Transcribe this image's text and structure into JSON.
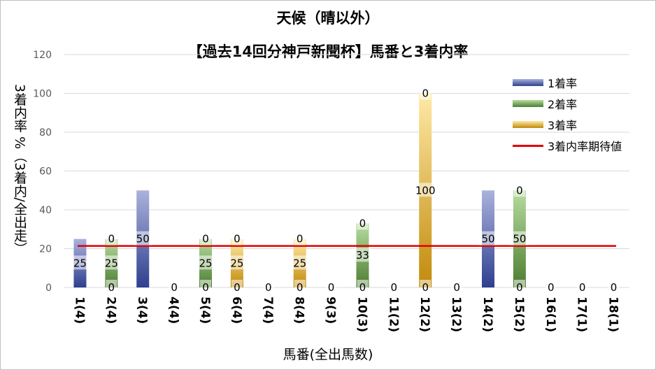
{
  "chart_data": {
    "type": "bar",
    "title": "天候（晴以外）",
    "subtitle": "【過去14回分神戸新聞杯】馬番と3着内率",
    "xlabel": "馬番(全出馬数)",
    "ylabel": "3着内率 %（3着内/全出走）",
    "ylim": [
      0,
      120
    ],
    "yticks": [
      0,
      20,
      40,
      60,
      80,
      100,
      120
    ],
    "legend_position": "top-right",
    "stacked": true,
    "categories": [
      "1(4)",
      "2(4)",
      "3(4)",
      "4(4)",
      "5(4)",
      "6(4)",
      "7(4)",
      "8(4)",
      "9(3)",
      "10(3)",
      "11(2)",
      "12(2)",
      "13(2)",
      "14(2)",
      "15(2)",
      "16(1)",
      "17(1)",
      "18(1)"
    ],
    "series": [
      {
        "name": "1着率",
        "color": "#3b4c9b",
        "values": [
          25,
          0,
          50,
          0,
          0,
          0,
          0,
          0,
          0,
          0,
          0,
          0,
          0,
          50,
          0,
          0,
          0,
          0
        ]
      },
      {
        "name": "2着率",
        "color": "#5a8f3c",
        "values": [
          0,
          25,
          0,
          0,
          25,
          0,
          0,
          0,
          0,
          33,
          0,
          0,
          0,
          0,
          50,
          0,
          0,
          0
        ]
      },
      {
        "name": "3着率",
        "color": "#c9920e",
        "values": [
          0,
          0,
          0,
          0,
          0,
          25,
          0,
          25,
          0,
          0,
          0,
          100,
          0,
          0,
          0,
          0,
          0,
          0
        ]
      }
    ],
    "reference_line": {
      "name": "3着内率期待値",
      "value": 21.4,
      "color": "#e00000"
    },
    "bar_labels": {
      "series1": [
        25,
        0,
        50,
        0,
        0,
        0,
        0,
        0,
        0,
        0,
        0,
        0,
        0,
        50,
        0,
        0,
        0,
        0
      ],
      "series2": [
        null,
        25,
        null,
        null,
        25,
        null,
        null,
        null,
        null,
        33,
        null,
        null,
        null,
        null,
        50,
        null,
        null,
        null
      ],
      "series3": [
        null,
        0,
        null,
        null,
        0,
        25,
        null,
        25,
        null,
        0,
        null,
        100,
        null,
        null,
        0,
        null,
        null,
        null
      ],
      "top": [
        null,
        null,
        null,
        null,
        null,
        0,
        null,
        0,
        null,
        null,
        null,
        0,
        null,
        null,
        null,
        null,
        null,
        null
      ]
    }
  }
}
